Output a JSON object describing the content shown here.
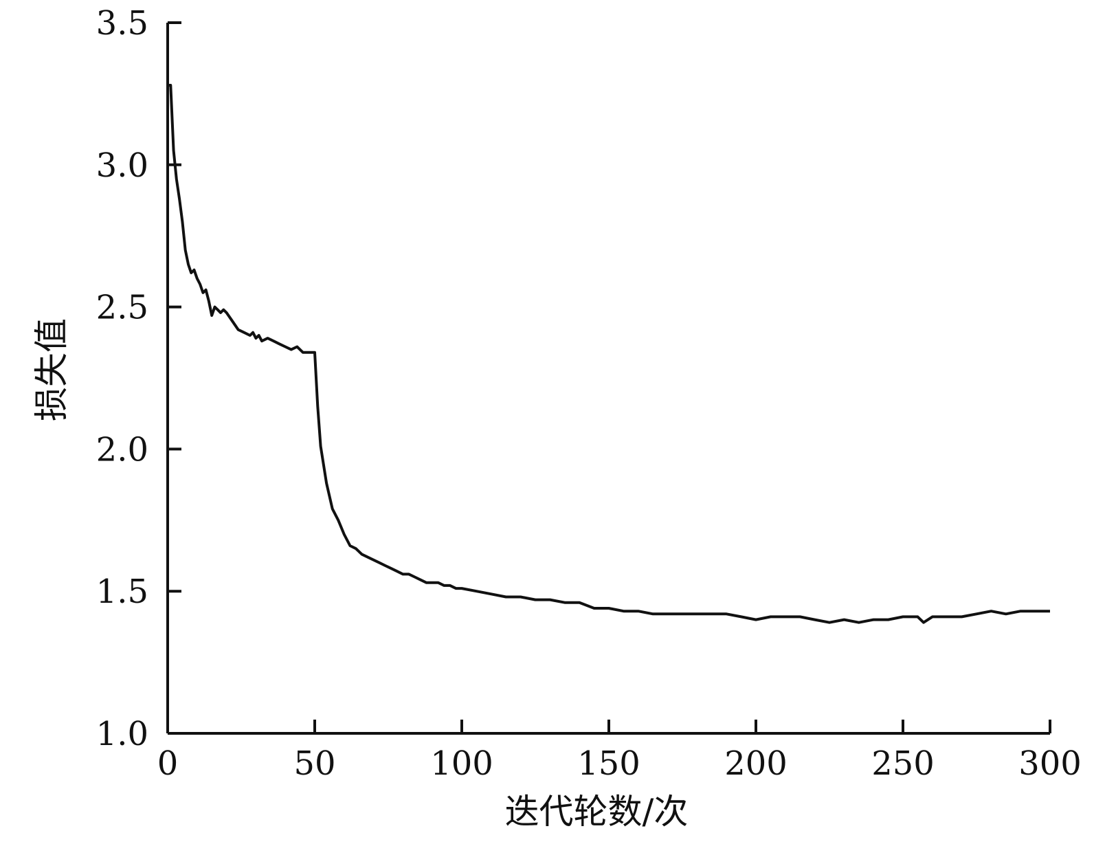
{
  "chart_data": {
    "type": "line",
    "title": "",
    "xlabel": "迭代轮数/次",
    "ylabel": "损失值",
    "xlim": [
      0,
      300
    ],
    "ylim": [
      1.0,
      3.5
    ],
    "xticks": [
      0,
      50,
      100,
      150,
      200,
      250,
      300
    ],
    "yticks": [
      1.0,
      1.5,
      2.0,
      2.5,
      3.0,
      3.5
    ],
    "xtick_labels": [
      "0",
      "50",
      "100",
      "150",
      "200",
      "250",
      "300"
    ],
    "ytick_labels": [
      "1.0",
      "1.5",
      "2.0",
      "2.5",
      "3.0",
      "3.5"
    ],
    "grid": false,
    "legend": "none",
    "line_color": "#111111",
    "series": [
      {
        "x": [
          0,
          1,
          2,
          3,
          4,
          5,
          6,
          7,
          8,
          9,
          10,
          11,
          12,
          13,
          14,
          15,
          16,
          17,
          18,
          19,
          20,
          22,
          24,
          26,
          28,
          29,
          30,
          31,
          32,
          34,
          36,
          38,
          40,
          42,
          44,
          46,
          48,
          49,
          50,
          51,
          52,
          54,
          56,
          58,
          60,
          62,
          64,
          66,
          68,
          70,
          72,
          74,
          76,
          78,
          80,
          82,
          84,
          86,
          88,
          90,
          92,
          94,
          96,
          98,
          100,
          105,
          110,
          115,
          120,
          125,
          130,
          135,
          140,
          145,
          150,
          155,
          160,
          165,
          170,
          175,
          180,
          185,
          190,
          195,
          200,
          205,
          210,
          215,
          220,
          225,
          230,
          235,
          240,
          245,
          250,
          255,
          257,
          260,
          265,
          270,
          275,
          280,
          285,
          290,
          295,
          298,
          300
        ],
        "y": [
          3.28,
          3.28,
          3.05,
          2.95,
          2.88,
          2.8,
          2.7,
          2.65,
          2.62,
          2.63,
          2.6,
          2.58,
          2.55,
          2.56,
          2.52,
          2.47,
          2.5,
          2.49,
          2.48,
          2.49,
          2.48,
          2.45,
          2.42,
          2.41,
          2.4,
          2.41,
          2.39,
          2.4,
          2.38,
          2.39,
          2.38,
          2.37,
          2.36,
          2.35,
          2.36,
          2.34,
          2.34,
          2.34,
          2.34,
          2.15,
          2.01,
          1.88,
          1.79,
          1.75,
          1.7,
          1.66,
          1.65,
          1.63,
          1.62,
          1.61,
          1.6,
          1.59,
          1.58,
          1.57,
          1.56,
          1.56,
          1.55,
          1.54,
          1.53,
          1.53,
          1.53,
          1.52,
          1.52,
          1.51,
          1.51,
          1.5,
          1.49,
          1.48,
          1.48,
          1.47,
          1.47,
          1.46,
          1.46,
          1.44,
          1.44,
          1.43,
          1.43,
          1.42,
          1.42,
          1.42,
          1.42,
          1.42,
          1.42,
          1.41,
          1.4,
          1.41,
          1.41,
          1.41,
          1.4,
          1.39,
          1.4,
          1.39,
          1.4,
          1.4,
          1.41,
          1.41,
          1.39,
          1.41,
          1.41,
          1.41,
          1.42,
          1.43,
          1.42,
          1.43,
          1.43,
          1.43,
          1.43
        ]
      }
    ]
  }
}
